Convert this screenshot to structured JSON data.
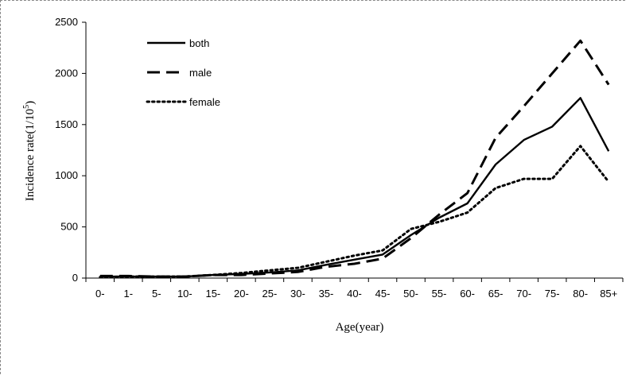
{
  "chart_data": {
    "type": "line",
    "title": "",
    "xlabel": "Age(year)",
    "ylabel": "Incidence rate(1/10",
    "ylabel_sup": "5",
    "ylabel_close": ")",
    "ylim": [
      0,
      2500
    ],
    "yticks": [
      "0",
      "500",
      "1000",
      "1500",
      "2000",
      "2500"
    ],
    "grid": false,
    "legend": "top-left",
    "categories": [
      "0-",
      "1-",
      "5-",
      "10-",
      "15-",
      "20-",
      "25-",
      "30-",
      "35-",
      "40-",
      "45-",
      "50-",
      "55-",
      "60-",
      "65-",
      "70-",
      "75-",
      "80-",
      "85+"
    ],
    "series": [
      {
        "name": "both",
        "style": "solid",
        "values": [
          15,
          15,
          15,
          15,
          30,
          40,
          55,
          75,
          130,
          180,
          230,
          420,
          590,
          730,
          1110,
          1350,
          1480,
          1760,
          1240
        ]
      },
      {
        "name": "male",
        "style": "dashed",
        "values": [
          20,
          20,
          15,
          15,
          30,
          30,
          45,
          60,
          110,
          140,
          190,
          390,
          620,
          830,
          1370,
          1680,
          2000,
          2320,
          1890
        ]
      },
      {
        "name": "female",
        "style": "dotted",
        "values": [
          10,
          15,
          15,
          15,
          30,
          50,
          75,
          100,
          160,
          220,
          270,
          480,
          550,
          640,
          880,
          970,
          970,
          1290,
          940
        ]
      }
    ]
  }
}
